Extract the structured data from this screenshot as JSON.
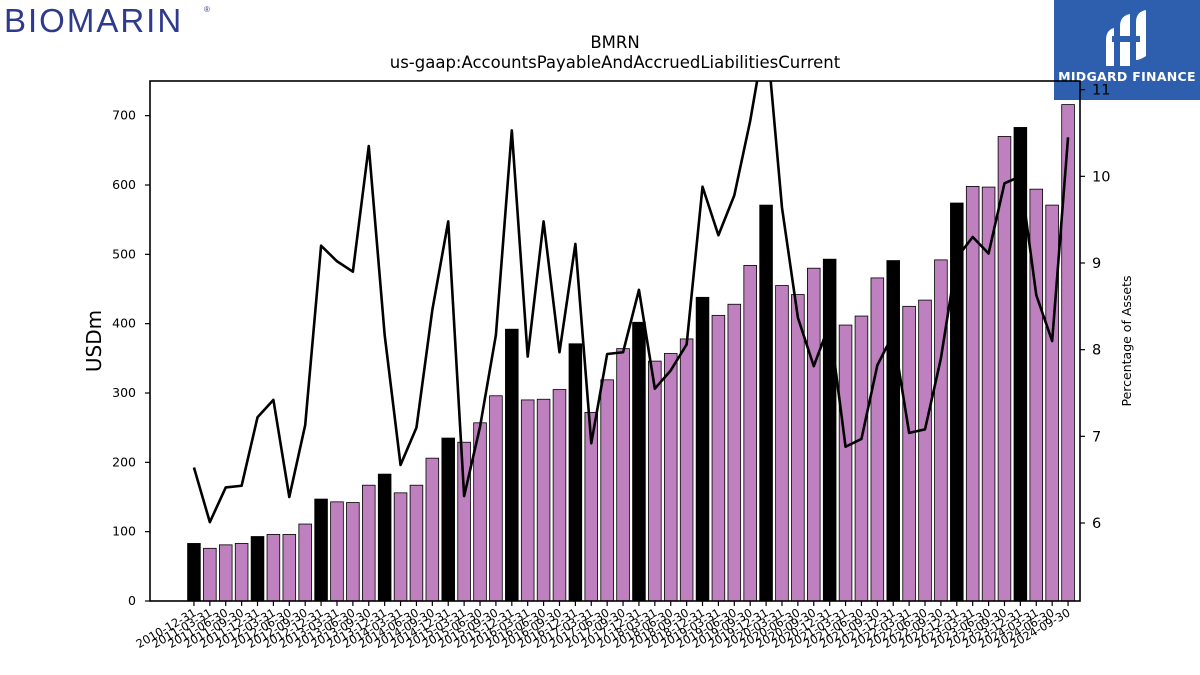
{
  "logos": {
    "left_text": "BIOMARIN",
    "left_trademark": "®",
    "right_text": "MIDGARD FINANCE"
  },
  "colors": {
    "bar_default": "#bf80bf",
    "bar_annual": "#000000",
    "line": "#000000",
    "logo_right_bg": "#2d5fae",
    "logo_left_text": "#2e3a8c"
  },
  "chart_data": {
    "type": "bar",
    "title": "BMRN",
    "subtitle": "us-gaap:AccountsPayableAndAccruedLiabilitiesCurrent",
    "ylabel": "USDm",
    "y2label": "Percentage of Assets",
    "ylim": [
      0,
      750
    ],
    "y2lim": [
      5.1,
      11.1
    ],
    "yticks": [
      0,
      100,
      200,
      300,
      400,
      500,
      600,
      700
    ],
    "y2ticks": [
      6,
      7,
      8,
      9,
      10,
      11
    ],
    "categories": [
      "2010-12-31",
      "2011-03-31",
      "2011-06-30",
      "2011-09-30",
      "2011-12-31",
      "2012-03-31",
      "2012-06-30",
      "2012-09-30",
      "2012-12-31",
      "2013-03-31",
      "2013-06-30",
      "2013-09-30",
      "2013-12-31",
      "2014-03-31",
      "2014-06-30",
      "2014-09-30",
      "2014-12-31",
      "2015-03-31",
      "2015-06-30",
      "2015-09-30",
      "2015-12-31",
      "2016-03-31",
      "2016-06-30",
      "2016-09-30",
      "2016-12-31",
      "2017-03-31",
      "2017-06-30",
      "2017-09-30",
      "2017-12-31",
      "2018-03-31",
      "2018-06-30",
      "2018-09-30",
      "2018-12-31",
      "2019-03-31",
      "2019-06-30",
      "2019-09-30",
      "2019-12-31",
      "2020-03-31",
      "2020-06-30",
      "2020-09-30",
      "2020-12-31",
      "2021-03-31",
      "2021-06-30",
      "2021-09-30",
      "2021-12-31",
      "2022-03-31",
      "2022-06-30",
      "2022-09-30",
      "2022-12-31",
      "2023-03-31",
      "2023-06-30",
      "2023-09-30",
      "2023-12-31",
      "2024-03-31",
      "2024-06-30",
      "2024-09-30"
    ],
    "xtick_labels": [
      "2010-12-31",
      "2011-03-31",
      "2011-06-30",
      "2011-09-30",
      "2011-12-31",
      "2012-03-31",
      "2012-06-30",
      "2012-09-30",
      "2012-12-31",
      "2013-03-31",
      "2013-06-30",
      "2013-09-30",
      "2013-12-31",
      "2014-03-31",
      "2014-06-30",
      "2014-09-30",
      "2014-12-31",
      "2015-03-31",
      "2015-06-30",
      "2015-09-30",
      "2015-12-31",
      "2016-03-31",
      "2016-06-30",
      "2016-09-30",
      "2016-12-31",
      "2017-03-31",
      "2017-06-30",
      "2017-09-30",
      "2017-12-31",
      "2018-03-31",
      "2018-06-30",
      "2018-09-30",
      "2018-12-31",
      "2019-03-31",
      "2019-06-30",
      "2019-09-30",
      "2019-12-31",
      "2020-03-31",
      "2020-06-30",
      "2020-09-30",
      "2020-12-31",
      "2021-03-31",
      "2021-06-30",
      "2021-09-30",
      "2021-12-31",
      "2022-03-31",
      "2022-06-30",
      "2022-09-30",
      "2022-12-31",
      "2023-03-31",
      "2023-06-30",
      "2023-09-30",
      "2023-12-31",
      "2024-03-31",
      "2024-06-30",
      "2024-09-30"
    ],
    "series": [
      {
        "type": "bar",
        "axis": "left",
        "values": [
          83,
          76,
          81,
          83,
          93,
          96,
          96,
          111,
          147,
          143,
          142,
          167,
          183,
          156,
          167,
          206,
          235,
          229,
          257,
          296,
          392,
          290,
          291,
          305,
          371,
          272,
          319,
          364,
          402,
          346,
          357,
          378,
          438,
          412,
          428,
          484,
          571,
          455,
          442,
          480,
          493,
          398,
          411,
          466,
          491,
          425,
          434,
          492,
          574,
          598,
          597,
          670,
          683,
          594,
          571,
          716
        ]
      },
      {
        "type": "line",
        "axis": "right",
        "values": [
          6.64,
          6.01,
          6.41,
          6.43,
          7.22,
          7.42,
          6.3,
          7.13,
          9.2,
          9.02,
          8.9,
          10.35,
          8.17,
          6.67,
          7.1,
          8.46,
          9.48,
          6.31,
          7.11,
          8.17,
          10.53,
          7.92,
          9.48,
          7.97,
          9.22,
          6.92,
          7.95,
          7.97,
          8.69,
          7.55,
          7.76,
          8.06,
          9.88,
          9.32,
          9.78,
          10.64,
          11.7,
          9.64,
          8.37,
          7.81,
          8.3,
          6.88,
          6.97,
          7.82,
          8.18,
          7.04,
          7.08,
          7.9,
          9.06,
          9.3,
          9.11,
          9.92,
          10.0,
          8.63,
          8.1,
          10.45
        ]
      }
    ],
    "annual_flags": [
      1,
      0,
      0,
      0,
      1,
      0,
      0,
      0,
      1,
      0,
      0,
      0,
      1,
      0,
      0,
      0,
      1,
      0,
      0,
      0,
      1,
      0,
      0,
      0,
      1,
      0,
      0,
      0,
      1,
      0,
      0,
      0,
      1,
      0,
      0,
      0,
      1,
      0,
      0,
      0,
      1,
      0,
      0,
      0,
      1,
      0,
      0,
      0,
      1,
      0,
      0,
      0,
      1,
      0,
      0,
      0
    ],
    "grid": false,
    "legend": "none"
  }
}
